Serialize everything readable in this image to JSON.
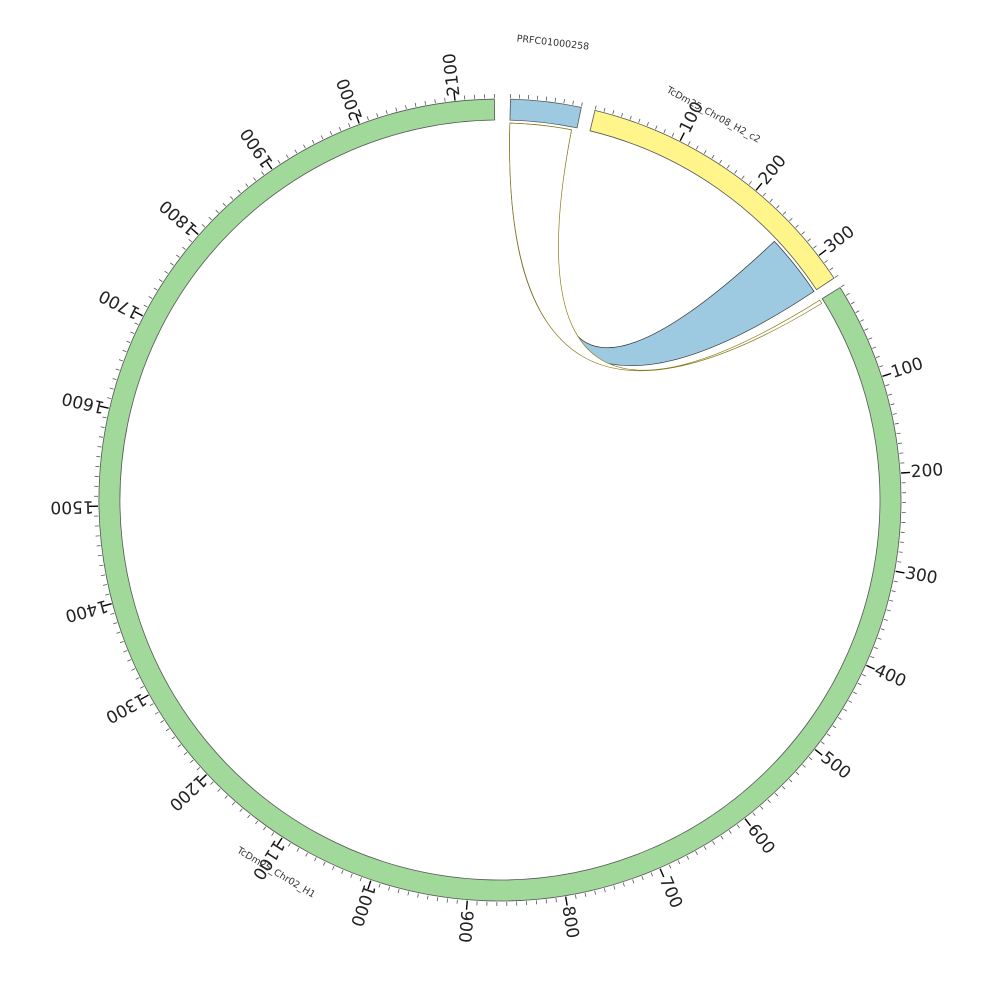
{
  "sequences": [
    {
      "id": "seq-prfc",
      "name": "PRFC01000258",
      "length": 80,
      "color": "#9ecae1",
      "label_ticks": false
    },
    {
      "id": "seq-chr08",
      "name": "TcDm25_Chr08_H2_c2",
      "length": 330,
      "color": "#fff58a",
      "label_ticks": true
    },
    {
      "id": "seq-chr02",
      "name": "TcDm25_Chr02_H1",
      "length": 2140,
      "color": "#a1d99b",
      "label_ticks": true
    }
  ],
  "tick_labels": {
    "seq-chr08": [
      "100",
      "200",
      "300"
    ],
    "seq-chr02": [
      "100",
      "200",
      "300",
      "400",
      "500",
      "600",
      "700",
      "800",
      "900",
      "1000",
      "1100",
      "1200",
      "1300",
      "1400",
      "1500",
      "1600",
      "1700",
      "1800",
      "1900",
      "2000",
      "2100"
    ]
  },
  "links": [
    {
      "source": "seq-prfc",
      "source_range": [
        0,
        74
      ],
      "target": "seq-chr08",
      "target_range": [
        255,
        330
      ],
      "color": "#9ecae1"
    },
    {
      "source": "seq-prfc",
      "source_range": [
        0,
        74
      ],
      "target": "seq-chr02",
      "target_range": [
        0,
        4
      ],
      "color": "#ffffff"
    }
  ]
}
